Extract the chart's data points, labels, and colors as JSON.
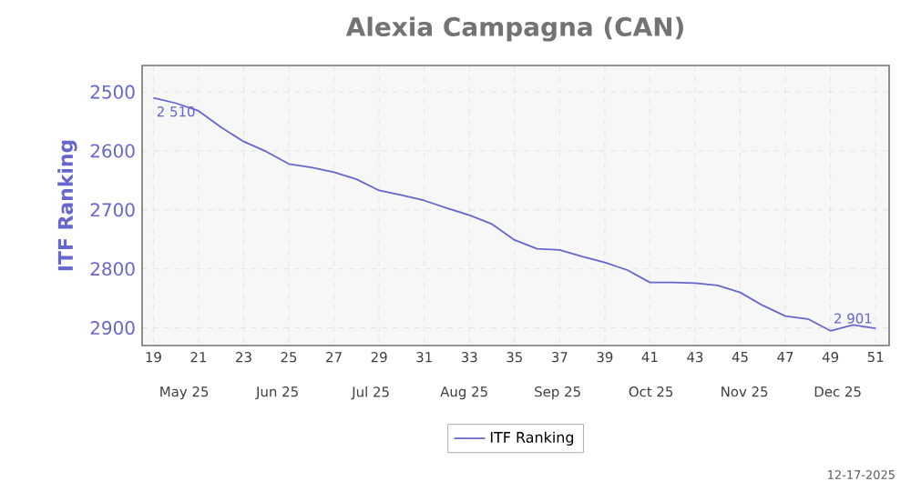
{
  "chart_data": {
    "type": "line",
    "title": "Alexia Campagna (CAN)",
    "ylabel": "ITF Ranking",
    "x": [
      19,
      20,
      21,
      22,
      23,
      24,
      25,
      26,
      27,
      28,
      29,
      30,
      31,
      32,
      33,
      34,
      35,
      36,
      37,
      38,
      39,
      40,
      41,
      42,
      43,
      44,
      45,
      46,
      47,
      48,
      49,
      50,
      51
    ],
    "series": [
      {
        "name": "ITF Ranking",
        "color": "#6666cc",
        "values": [
          2510,
          2519,
          2532,
          2560,
          2584,
          2601,
          2622,
          2628,
          2636,
          2648,
          2667,
          2675,
          2684,
          2697,
          2709,
          2724,
          2751,
          2766,
          2768,
          2779,
          2789,
          2802,
          2823,
          2823,
          2824,
          2828,
          2840,
          2862,
          2880,
          2885,
          2905,
          2895,
          2901
        ]
      }
    ],
    "xlim": [
      18.5,
      51.6
    ],
    "xticks": [
      19,
      21,
      23,
      25,
      27,
      29,
      31,
      33,
      35,
      37,
      39,
      41,
      43,
      45,
      47,
      49,
      51
    ],
    "ylim": [
      2930,
      2455
    ],
    "yticks": [
      2500,
      2600,
      2700,
      2800,
      2900
    ],
    "grid": true,
    "legend": "bottom",
    "marker": "none",
    "line_style": "solid",
    "annotations": [
      "May 25",
      "Jun 25",
      "Jul 25",
      "Aug 25",
      "Sep 25",
      "Oct 25",
      "Nov 25",
      "Dec 25",
      {
        "text": "2 510",
        "x": 19,
        "y": 2510
      },
      {
        "text": "2 901",
        "x": 51,
        "y": 2901
      },
      "12-17-2025"
    ]
  }
}
